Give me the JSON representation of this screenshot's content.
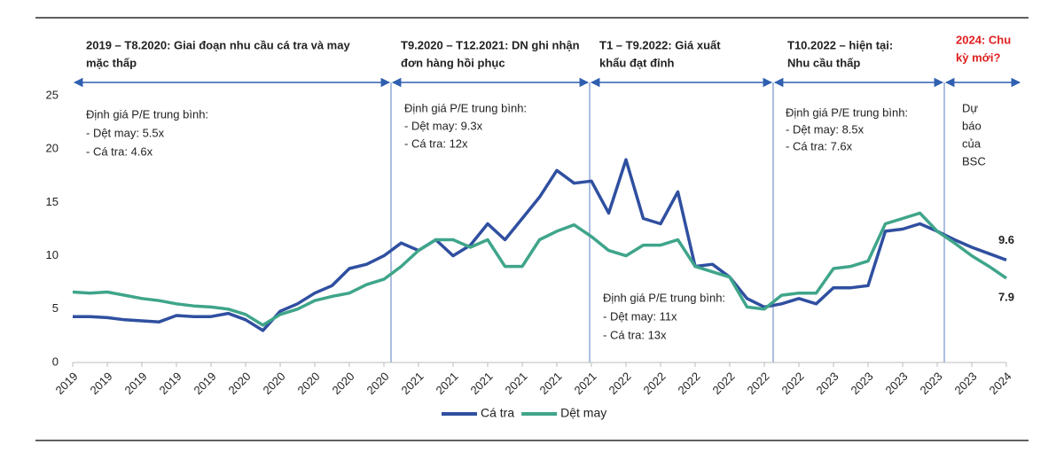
{
  "chart_data": {
    "type": "line",
    "periods": [
      [
        "2019 – T8.2020: Giai đoạn nhu cầu cá tra và may",
        "mặc thấp"
      ],
      [
        "T9.2020 – T12.2021: DN ghi nhận",
        "đơn hàng hồi phục"
      ],
      [
        "T1 – T9.2022: Giá xuất",
        "khẩu đạt đỉnh"
      ],
      [
        "T10.2022 – hiện tại:",
        "Nhu cầu thấp"
      ],
      [
        "2024: Chu",
        "kỳ mới?"
      ]
    ],
    "notes": [
      [
        "Định giá P/E trung bình:",
        "- Dệt may: 5.5x",
        "- Cá tra: 4.6x"
      ],
      [
        "Định giá P/E trung bình:",
        "- Dệt may: 9.3x",
        "- Cá tra: 12x"
      ],
      [
        "Định giá P/E trung bình:",
        "- Dệt may: 11x",
        "- Cá tra: 13x"
      ],
      [
        "Định giá P/E trung bình:",
        "- Dệt may: 8.5x",
        "- Cá tra: 7.6x"
      ],
      [
        "Dự",
        "báo",
        "của",
        "BSC"
      ]
    ],
    "x": [
      0,
      0.5,
      1,
      1.5,
      2,
      2.5,
      3,
      3.5,
      4,
      4.5,
      5,
      5.5,
      6,
      6.5,
      7,
      7.5,
      8,
      8.5,
      9,
      9.5,
      10,
      10.5,
      11,
      11.5,
      12,
      12.5,
      13,
      13.5,
      14,
      14.5,
      15,
      15.5,
      16,
      16.5,
      17,
      17.5,
      18,
      18.5,
      19,
      19.5,
      20,
      20.5,
      21,
      21.5,
      22,
      22.5,
      23,
      23.5,
      24,
      24.5,
      25,
      25.5,
      26,
      26.5,
      27
    ],
    "series": [
      {
        "name": "Cá tra",
        "color": "#2f4fa0",
        "values": [
          4.3,
          4.3,
          4.2,
          4.0,
          3.9,
          3.8,
          4.4,
          4.3,
          4.3,
          4.6,
          4.0,
          3.0,
          4.8,
          5.5,
          6.5,
          7.2,
          8.8,
          9.2,
          10.0,
          11.2,
          10.5,
          11.5,
          10.0,
          11.0,
          13.0,
          11.5,
          13.5,
          15.5,
          18,
          16.8,
          17,
          14,
          19,
          13.5,
          13,
          16,
          9,
          9.2,
          8,
          6,
          5.2,
          5.5,
          6,
          5.5,
          7,
          7.0,
          7.2,
          12.3,
          12.5,
          13,
          12.3,
          11.5,
          10.8,
          10.2,
          9.6
        ]
      },
      {
        "name": "Dệt may",
        "color": "#3fa58a",
        "values": [
          6.6,
          6.5,
          6.6,
          6.3,
          6.0,
          5.8,
          5.5,
          5.3,
          5.2,
          5.0,
          4.5,
          3.5,
          4.5,
          5.0,
          5.8,
          6.2,
          6.5,
          7.3,
          7.8,
          9.0,
          10.5,
          11.5,
          11.5,
          10.8,
          11.5,
          9,
          9.0,
          11.5,
          12.3,
          12.9,
          11.8,
          10.5,
          10,
          11,
          11,
          11.5,
          9,
          8.5,
          8,
          5.2,
          5.0,
          6.3,
          6.5,
          6.5,
          8.8,
          9.0,
          9.5,
          13,
          13.5,
          14,
          12.3,
          11.2,
          10,
          9,
          7.9
        ]
      }
    ],
    "xlim": [
      0,
      27
    ],
    "xticks": [
      {
        "value": 0,
        "label": "2019"
      },
      {
        "value": 1,
        "label": "2019"
      },
      {
        "value": 2,
        "label": "2019"
      },
      {
        "value": 3,
        "label": "2019"
      },
      {
        "value": 4,
        "label": "2019"
      },
      {
        "value": 5,
        "label": "2020"
      },
      {
        "value": 6,
        "label": "2020"
      },
      {
        "value": 7,
        "label": "2020"
      },
      {
        "value": 8,
        "label": "2020"
      },
      {
        "value": 9,
        "label": "2020"
      },
      {
        "value": 10,
        "label": "2021"
      },
      {
        "value": 11,
        "label": "2021"
      },
      {
        "value": 12,
        "label": "2021"
      },
      {
        "value": 13,
        "label": "2021"
      },
      {
        "value": 14,
        "label": "2021"
      },
      {
        "value": 15,
        "label": "2021"
      },
      {
        "value": 16,
        "label": "2022"
      },
      {
        "value": 17,
        "label": "2022"
      },
      {
        "value": 18,
        "label": "2022"
      },
      {
        "value": 19,
        "label": "2022"
      },
      {
        "value": 20,
        "label": "2022"
      },
      {
        "value": 21,
        "label": "2022"
      },
      {
        "value": 22,
        "label": "2023"
      },
      {
        "value": 23,
        "label": "2023"
      },
      {
        "value": 24,
        "label": "2023"
      },
      {
        "value": 25,
        "label": "2023"
      },
      {
        "value": 26,
        "label": "2023"
      },
      {
        "value": 27,
        "label": "2024"
      }
    ],
    "ylim": [
      0,
      25
    ],
    "yticks": [
      0,
      5,
      10,
      15,
      20,
      25
    ],
    "legend": "bottom"
  }
}
